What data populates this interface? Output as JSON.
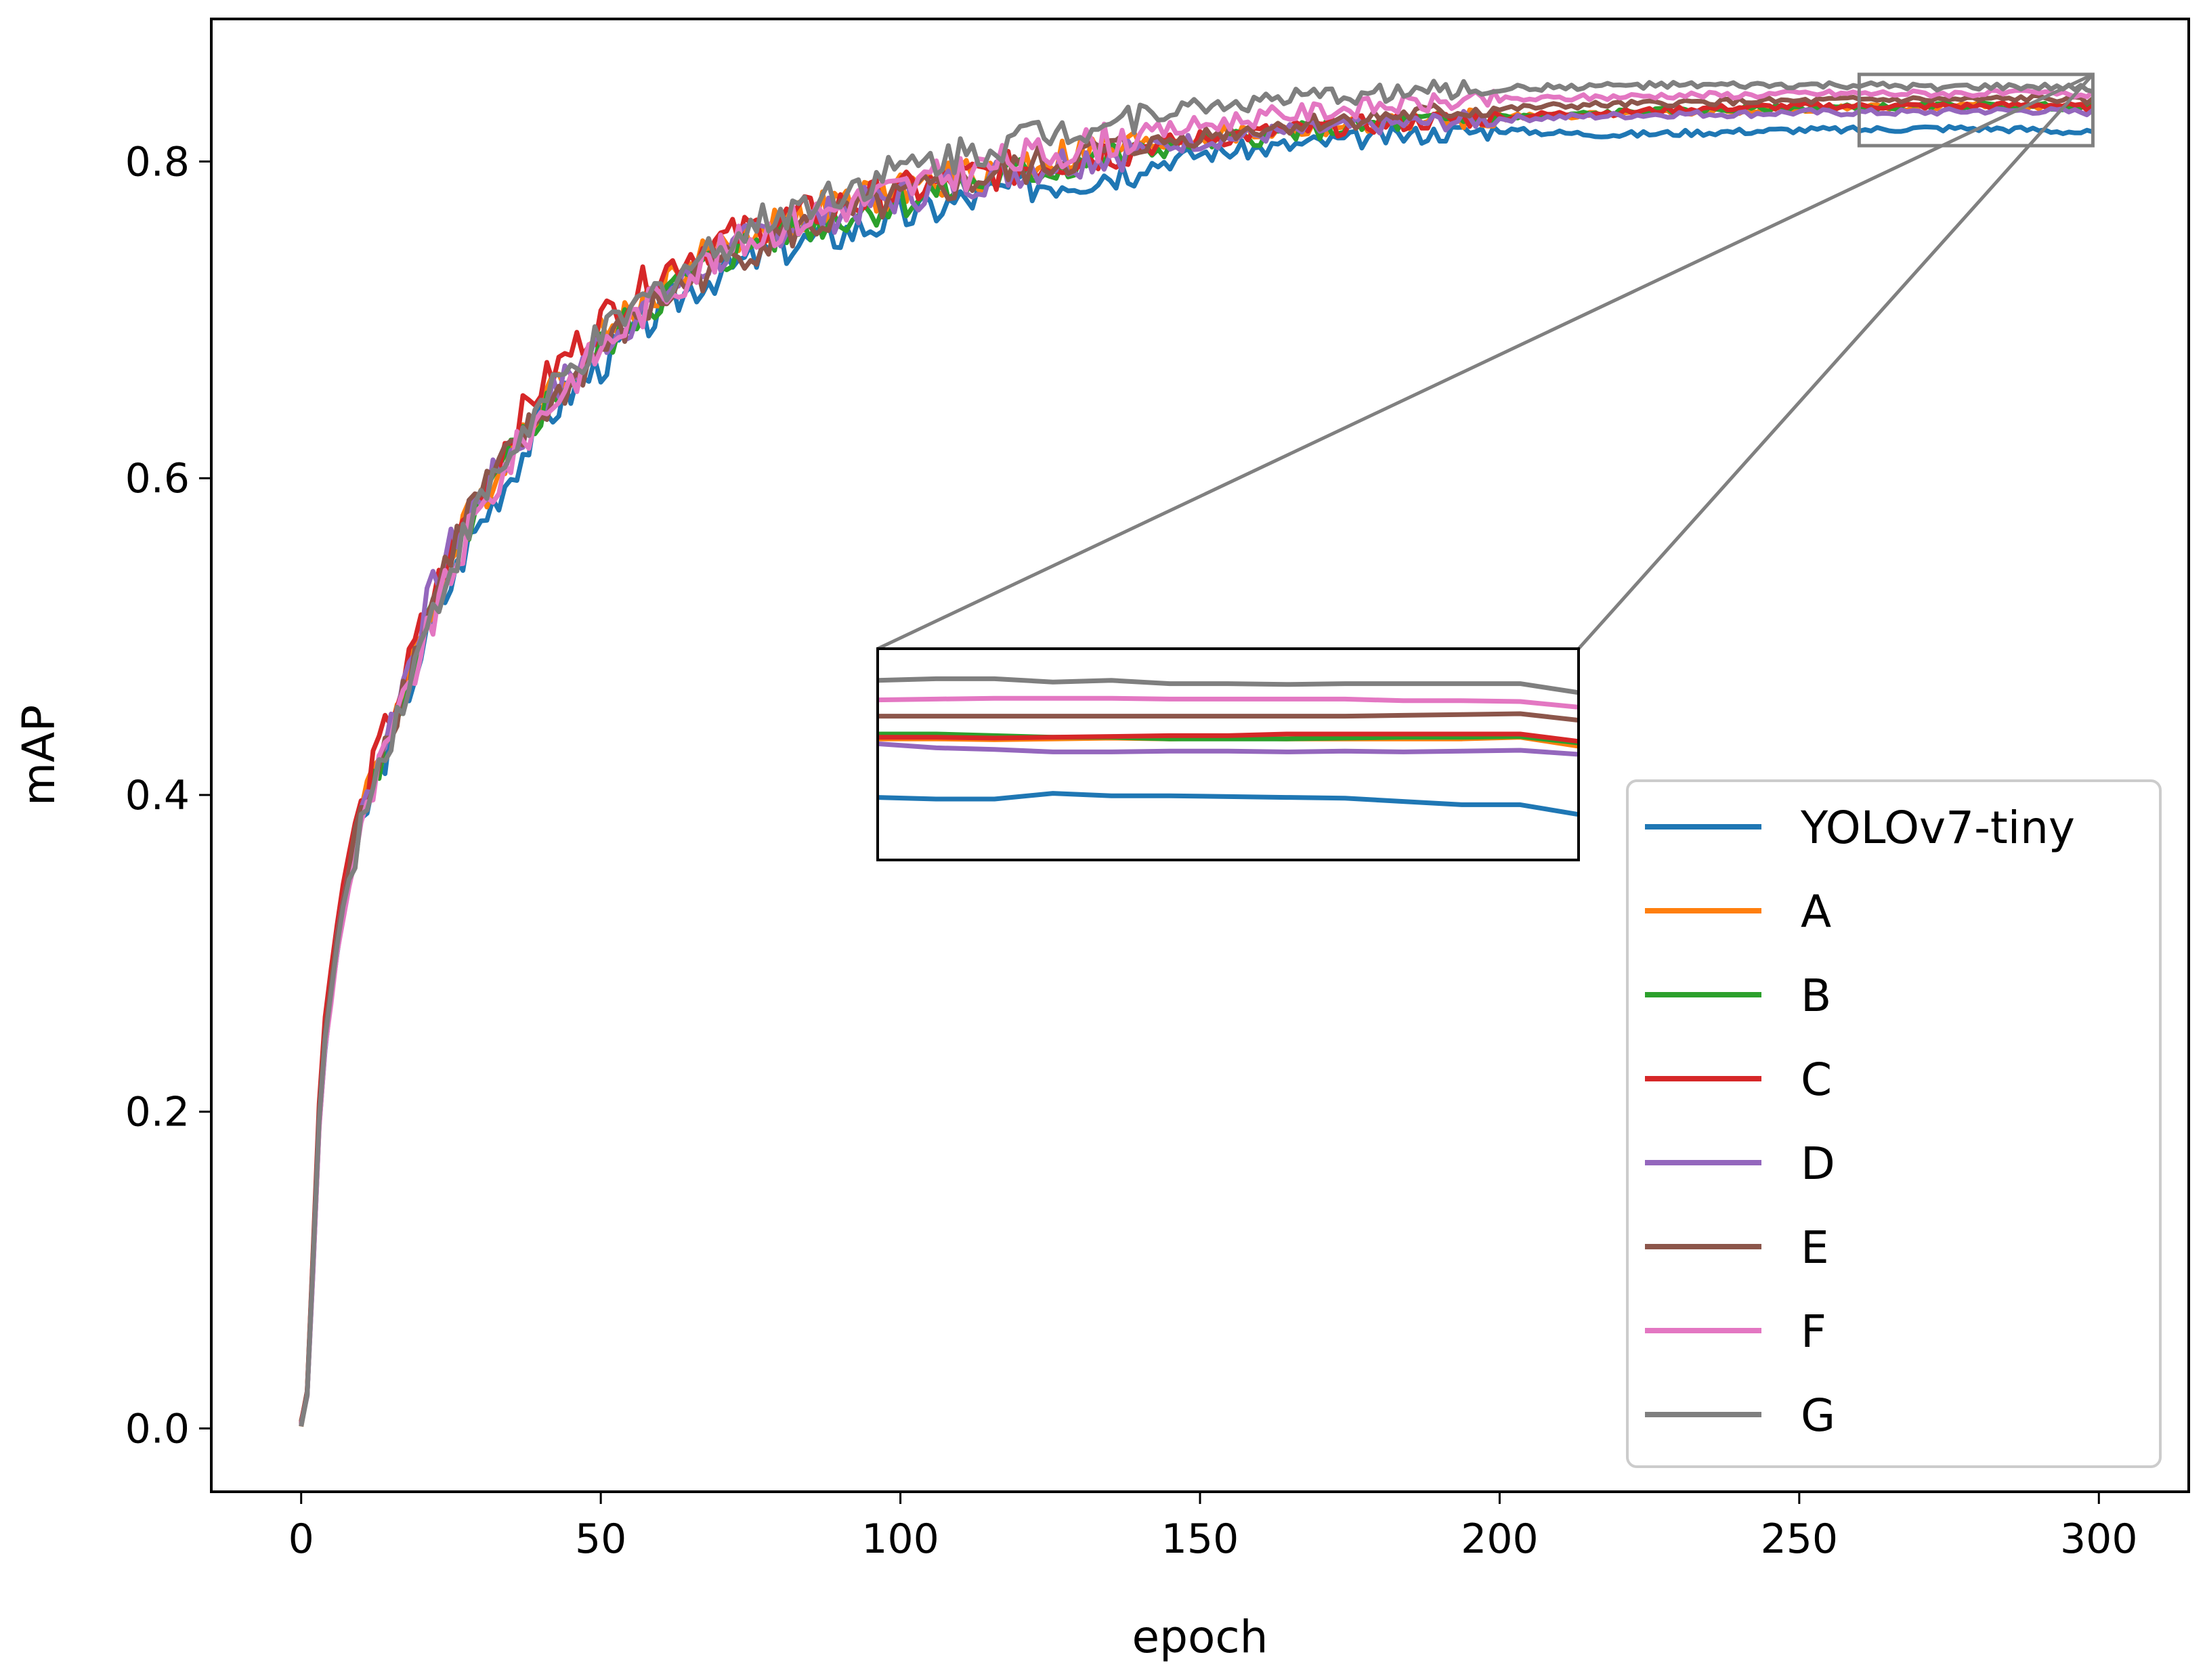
{
  "chart_data": {
    "type": "line",
    "title": "",
    "xlabel": "epoch",
    "ylabel": "mAP",
    "xlim": [
      -15,
      315
    ],
    "ylim": [
      -0.04,
      0.89
    ],
    "xticks": [
      0,
      50,
      100,
      150,
      200,
      250,
      300
    ],
    "yticks": [
      0.0,
      0.2,
      0.4,
      0.6,
      0.8
    ],
    "xtick_labels": [
      "0",
      "50",
      "100",
      "150",
      "200",
      "250",
      "300"
    ],
    "ytick_labels": [
      "0.0",
      "0.2",
      "0.4",
      "0.6",
      "0.8"
    ],
    "grid": false,
    "legend_position": "lower-right",
    "x": [
      0,
      1,
      2,
      3,
      4,
      6,
      8,
      10,
      13,
      16,
      20,
      24,
      28,
      32,
      36,
      40,
      45,
      50,
      55,
      60,
      65,
      70,
      75,
      80,
      90,
      100,
      110,
      120,
      130,
      140,
      150,
      160,
      170,
      180,
      190,
      200,
      210,
      220,
      230,
      240,
      250,
      260,
      270,
      280,
      290,
      299
    ],
    "series": [
      {
        "name": "YOLOv7-tiny",
        "color": "#1f77b4",
        "values": [
          0.003,
          0.02,
          0.1,
          0.19,
          0.24,
          0.3,
          0.35,
          0.38,
          0.415,
          0.445,
          0.49,
          0.525,
          0.56,
          0.585,
          0.61,
          0.635,
          0.655,
          0.672,
          0.69,
          0.705,
          0.72,
          0.73,
          0.738,
          0.745,
          0.755,
          0.765,
          0.775,
          0.785,
          0.79,
          0.797,
          0.805,
          0.808,
          0.812,
          0.815,
          0.818,
          0.82,
          0.818,
          0.817,
          0.818,
          0.819,
          0.82,
          0.82,
          0.821,
          0.821,
          0.82,
          0.818
        ]
      },
      {
        "name": "A",
        "color": "#ff7f0e",
        "values": [
          0.003,
          0.022,
          0.11,
          0.2,
          0.25,
          0.31,
          0.355,
          0.385,
          0.425,
          0.455,
          0.5,
          0.54,
          0.575,
          0.6,
          0.625,
          0.648,
          0.67,
          0.69,
          0.705,
          0.72,
          0.735,
          0.745,
          0.755,
          0.762,
          0.772,
          0.782,
          0.79,
          0.798,
          0.805,
          0.81,
          0.815,
          0.818,
          0.821,
          0.824,
          0.826,
          0.828,
          0.829,
          0.83,
          0.831,
          0.832,
          0.833,
          0.834,
          0.834,
          0.835,
          0.835,
          0.834
        ]
      },
      {
        "name": "B",
        "color": "#2ca02c",
        "values": [
          0.003,
          0.021,
          0.105,
          0.195,
          0.245,
          0.305,
          0.35,
          0.38,
          0.42,
          0.45,
          0.495,
          0.535,
          0.57,
          0.595,
          0.62,
          0.642,
          0.663,
          0.683,
          0.699,
          0.714,
          0.728,
          0.739,
          0.748,
          0.755,
          0.765,
          0.775,
          0.784,
          0.792,
          0.8,
          0.806,
          0.812,
          0.816,
          0.82,
          0.823,
          0.826,
          0.828,
          0.829,
          0.831,
          0.832,
          0.833,
          0.834,
          0.834,
          0.835,
          0.835,
          0.835,
          0.834
        ]
      },
      {
        "name": "C",
        "color": "#d62728",
        "values": [
          0.003,
          0.024,
          0.115,
          0.205,
          0.26,
          0.32,
          0.365,
          0.39,
          0.43,
          0.46,
          0.505,
          0.545,
          0.58,
          0.608,
          0.635,
          0.658,
          0.68,
          0.7,
          0.716,
          0.73,
          0.742,
          0.75,
          0.757,
          0.763,
          0.772,
          0.781,
          0.789,
          0.796,
          0.803,
          0.809,
          0.814,
          0.818,
          0.821,
          0.824,
          0.826,
          0.828,
          0.83,
          0.831,
          0.833,
          0.834,
          0.835,
          0.835,
          0.835,
          0.835,
          0.836,
          0.834
        ]
      },
      {
        "name": "D",
        "color": "#9467bd",
        "values": [
          0.003,
          0.022,
          0.108,
          0.198,
          0.25,
          0.31,
          0.355,
          0.385,
          0.425,
          0.458,
          0.51,
          0.55,
          0.578,
          0.6,
          0.622,
          0.645,
          0.666,
          0.685,
          0.7,
          0.715,
          0.728,
          0.74,
          0.75,
          0.758,
          0.768,
          0.778,
          0.787,
          0.795,
          0.802,
          0.808,
          0.813,
          0.817,
          0.82,
          0.823,
          0.825,
          0.827,
          0.828,
          0.829,
          0.83,
          0.83,
          0.831,
          0.831,
          0.831,
          0.832,
          0.832,
          0.831
        ]
      },
      {
        "name": "E",
        "color": "#8c564b",
        "values": [
          0.003,
          0.022,
          0.11,
          0.2,
          0.25,
          0.31,
          0.355,
          0.385,
          0.425,
          0.455,
          0.5,
          0.545,
          0.58,
          0.6,
          0.62,
          0.64,
          0.66,
          0.68,
          0.698,
          0.712,
          0.725,
          0.736,
          0.745,
          0.753,
          0.765,
          0.776,
          0.786,
          0.795,
          0.803,
          0.81,
          0.816,
          0.821,
          0.825,
          0.828,
          0.831,
          0.833,
          0.835,
          0.836,
          0.837,
          0.838,
          0.838,
          0.839,
          0.839,
          0.839,
          0.84,
          0.838
        ]
      },
      {
        "name": "F",
        "color": "#e377c2",
        "values": [
          0.003,
          0.02,
          0.1,
          0.19,
          0.24,
          0.3,
          0.345,
          0.375,
          0.415,
          0.445,
          0.49,
          0.53,
          0.565,
          0.592,
          0.618,
          0.64,
          0.662,
          0.682,
          0.7,
          0.716,
          0.73,
          0.742,
          0.752,
          0.76,
          0.772,
          0.783,
          0.793,
          0.802,
          0.81,
          0.817,
          0.823,
          0.828,
          0.832,
          0.835,
          0.837,
          0.839,
          0.84,
          0.841,
          0.842,
          0.842,
          0.843,
          0.843,
          0.843,
          0.843,
          0.843,
          0.842
        ]
      },
      {
        "name": "G",
        "color": "#7f7f7f",
        "values": [
          0.003,
          0.021,
          0.105,
          0.195,
          0.245,
          0.305,
          0.35,
          0.38,
          0.42,
          0.45,
          0.495,
          0.535,
          0.57,
          0.598,
          0.622,
          0.645,
          0.667,
          0.688,
          0.705,
          0.72,
          0.735,
          0.748,
          0.758,
          0.768,
          0.782,
          0.795,
          0.805,
          0.815,
          0.823,
          0.83,
          0.835,
          0.838,
          0.841,
          0.843,
          0.845,
          0.846,
          0.847,
          0.848,
          0.848,
          0.848,
          0.848,
          0.848,
          0.847,
          0.847,
          0.847,
          0.846
        ]
      }
    ],
    "inset": {
      "source_xlim": [
        260,
        299
      ],
      "source_ylim": [
        0.81,
        0.855
      ],
      "series_values": [
        {
          "name": "YOLOv7-tiny",
          "values": [
            0.3985,
            0.3975,
            0.3975,
            0.401,
            0.3995,
            0.3995,
            0.399,
            0.3985,
            0.398,
            0.396,
            0.394,
            0.394,
            0.388
          ]
        },
        {
          "name": "A",
          "values": [
            0.4345,
            0.4345,
            0.434,
            0.4345,
            0.435,
            0.4345,
            0.435,
            0.4345,
            0.4345,
            0.4345,
            0.4345,
            0.4355,
            0.43
          ]
        },
        {
          "name": "B",
          "values": [
            0.4375,
            0.4375,
            0.4365,
            0.4355,
            0.4355,
            0.4345,
            0.4345,
            0.4345,
            0.435,
            0.4355,
            0.4355,
            0.436,
            0.432
          ]
        },
        {
          "name": "C",
          "values": [
            0.4355,
            0.4355,
            0.435,
            0.4355,
            0.436,
            0.4365,
            0.4365,
            0.4375,
            0.4375,
            0.4375,
            0.4375,
            0.4375,
            0.433
          ]
        },
        {
          "name": "D",
          "values": [
            0.4315,
            0.429,
            0.428,
            0.4265,
            0.4265,
            0.427,
            0.427,
            0.4265,
            0.427,
            0.4265,
            0.427,
            0.4275,
            0.425
          ]
        },
        {
          "name": "E",
          "values": [
            0.4485,
            0.4485,
            0.4485,
            0.4485,
            0.4485,
            0.4485,
            0.4485,
            0.4485,
            0.4485,
            0.449,
            0.4495,
            0.45,
            0.446
          ]
        },
        {
          "name": "F",
          "values": [
            0.4585,
            0.459,
            0.4595,
            0.4595,
            0.4595,
            0.459,
            0.459,
            0.459,
            0.459,
            0.458,
            0.458,
            0.4575,
            0.454
          ]
        },
        {
          "name": "G",
          "values": [
            0.4705,
            0.4715,
            0.4715,
            0.4695,
            0.4705,
            0.4685,
            0.4685,
            0.468,
            0.4685,
            0.4685,
            0.4685,
            0.4685,
            0.463
          ]
        }
      ]
    }
  }
}
